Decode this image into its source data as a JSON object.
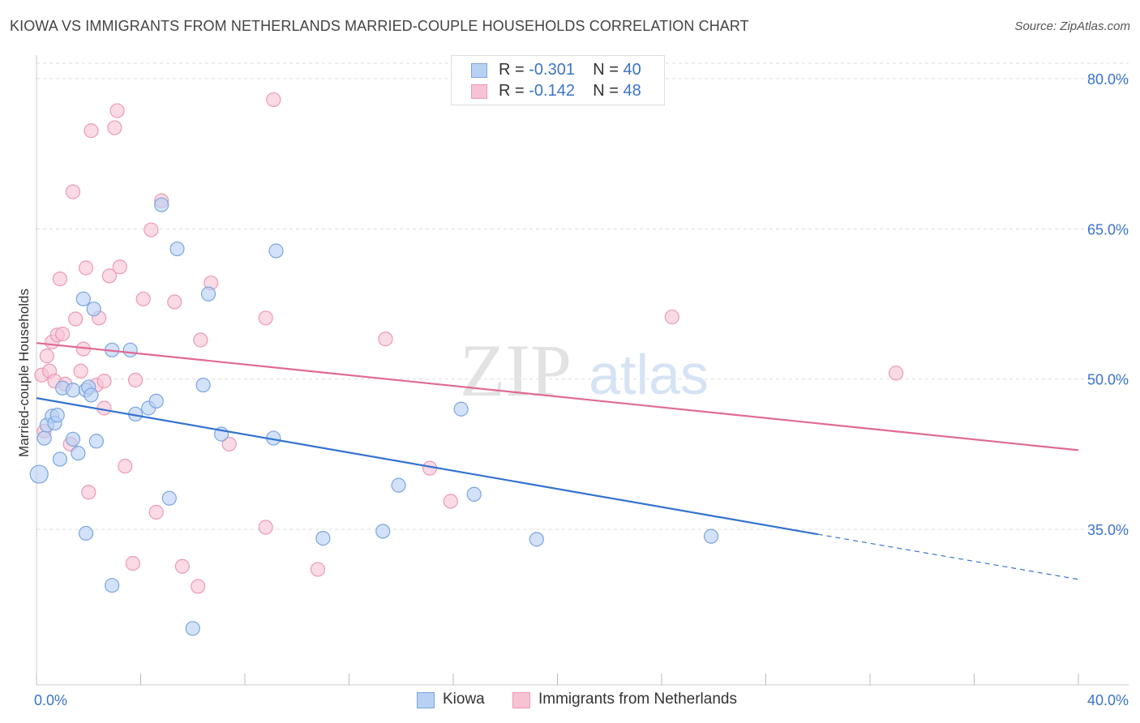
{
  "header": {
    "title": "KIOWA VS IMMIGRANTS FROM NETHERLANDS MARRIED-COUPLE HOUSEHOLDS CORRELATION CHART",
    "source": "Source: ZipAtlas.com"
  },
  "watermark": {
    "zip": "ZIP",
    "atlas": "atlas"
  },
  "legend_box": {
    "rows": [
      {
        "r_label": "R =",
        "r_value": "-0.301",
        "n_label": "N =",
        "n_value": "40"
      },
      {
        "r_label": "R =",
        "r_value": "-0.142",
        "n_label": "N =",
        "n_value": "48"
      }
    ]
  },
  "chart_data": {
    "type": "scatter",
    "title": "KIOWA VS IMMIGRANTS FROM NETHERLANDS MARRIED-COUPLE HOUSEHOLDS CORRELATION CHART",
    "ylabel": "Married-couple Households",
    "xlim": [
      0,
      40
    ],
    "ylim": [
      20,
      82
    ],
    "x_tick_labels": [
      "0.0%",
      "40.0%"
    ],
    "y_ticks": [
      35,
      50,
      65,
      80
    ],
    "y_tick_labels": [
      "35.0%",
      "50.0%",
      "65.0%",
      "80.0%"
    ],
    "grid": true,
    "colors": {
      "kiowa_fill": "#b8d1f3",
      "kiowa_stroke": "#7aa5e0",
      "kiowa_line": "#3472d0",
      "neth_fill": "#f7c3d3",
      "neth_stroke": "#ec9ab4",
      "neth_line": "#e06a93",
      "axis_text": "#3b74c9",
      "grid": "#dddddd"
    },
    "series": [
      {
        "name": "Kiowa",
        "legend_label": "Kiowa",
        "r": -0.301,
        "n": 40,
        "trend": {
          "x0": 0,
          "y0": 48.1,
          "x1": 30,
          "y1": 34.5,
          "dash_to_x": 40,
          "dash_to_y": 30.0
        },
        "points": [
          [
            0.1,
            40.5
          ],
          [
            0.3,
            44.1
          ],
          [
            0.4,
            45.4
          ],
          [
            0.6,
            46.3
          ],
          [
            0.7,
            45.6
          ],
          [
            0.8,
            46.4
          ],
          [
            0.9,
            42.0
          ],
          [
            1.0,
            49.1
          ],
          [
            1.4,
            48.9
          ],
          [
            1.4,
            44.0
          ],
          [
            1.6,
            42.6
          ],
          [
            1.8,
            58.0
          ],
          [
            1.9,
            48.9
          ],
          [
            2.0,
            49.2
          ],
          [
            2.1,
            48.4
          ],
          [
            2.2,
            57.0
          ],
          [
            2.3,
            43.8
          ],
          [
            2.9,
            29.4
          ],
          [
            2.9,
            52.9
          ],
          [
            3.6,
            52.9
          ],
          [
            3.8,
            46.5
          ],
          [
            4.3,
            47.1
          ],
          [
            4.6,
            47.8
          ],
          [
            4.8,
            67.4
          ],
          [
            5.1,
            38.1
          ],
          [
            5.4,
            63.0
          ],
          [
            6.0,
            25.1
          ],
          [
            6.4,
            49.4
          ],
          [
            6.6,
            58.5
          ],
          [
            7.1,
            44.5
          ],
          [
            9.1,
            44.1
          ],
          [
            9.2,
            62.8
          ],
          [
            11.0,
            34.1
          ],
          [
            13.3,
            34.8
          ],
          [
            13.9,
            39.4
          ],
          [
            16.3,
            47.0
          ],
          [
            16.8,
            38.5
          ],
          [
            19.2,
            34.0
          ],
          [
            25.9,
            34.3
          ],
          [
            1.9,
            34.6
          ]
        ]
      },
      {
        "name": "Immigrants from Netherlands",
        "legend_label": "Immigrants from Netherlands",
        "r": -0.142,
        "n": 48,
        "trend": {
          "x0": 0,
          "y0": 53.6,
          "x1": 40,
          "y1": 42.9
        },
        "points": [
          [
            0.2,
            50.4
          ],
          [
            0.3,
            44.8
          ],
          [
            0.4,
            52.3
          ],
          [
            0.5,
            50.8
          ],
          [
            0.6,
            53.7
          ],
          [
            0.7,
            49.8
          ],
          [
            0.8,
            54.4
          ],
          [
            0.9,
            60.0
          ],
          [
            1.0,
            54.5
          ],
          [
            1.1,
            49.5
          ],
          [
            1.3,
            43.5
          ],
          [
            1.4,
            68.7
          ],
          [
            1.5,
            56.0
          ],
          [
            1.7,
            50.8
          ],
          [
            1.8,
            53.0
          ],
          [
            1.9,
            61.1
          ],
          [
            2.0,
            38.7
          ],
          [
            2.1,
            74.8
          ],
          [
            2.3,
            49.4
          ],
          [
            2.4,
            56.1
          ],
          [
            2.6,
            47.1
          ],
          [
            2.6,
            49.8
          ],
          [
            2.8,
            60.3
          ],
          [
            3.0,
            75.1
          ],
          [
            3.1,
            76.8
          ],
          [
            3.2,
            61.2
          ],
          [
            3.4,
            41.3
          ],
          [
            3.7,
            31.6
          ],
          [
            3.8,
            49.9
          ],
          [
            4.1,
            58.0
          ],
          [
            4.4,
            64.9
          ],
          [
            4.6,
            36.7
          ],
          [
            4.8,
            67.8
          ],
          [
            5.3,
            57.7
          ],
          [
            5.6,
            31.3
          ],
          [
            6.2,
            29.3
          ],
          [
            6.3,
            53.9
          ],
          [
            6.7,
            59.6
          ],
          [
            7.4,
            43.5
          ],
          [
            8.8,
            56.1
          ],
          [
            8.8,
            35.2
          ],
          [
            9.1,
            77.9
          ],
          [
            10.8,
            31.0
          ],
          [
            13.4,
            54.0
          ],
          [
            15.1,
            41.1
          ],
          [
            15.9,
            37.8
          ],
          [
            24.4,
            56.2
          ],
          [
            33.0,
            50.6
          ]
        ]
      }
    ]
  }
}
